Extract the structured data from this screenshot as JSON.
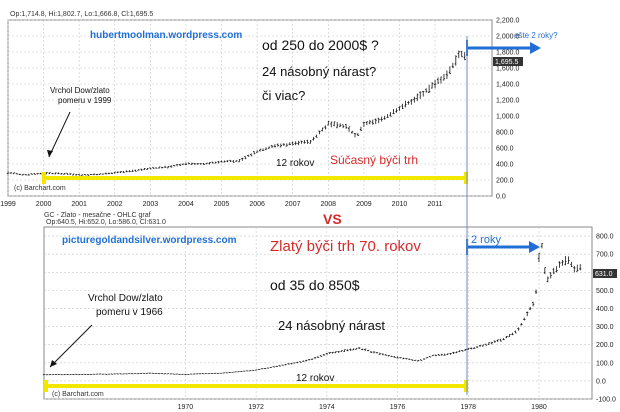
{
  "colors": {
    "annotation_blue": "#1f6fd6",
    "annotation_red": "#d62a2a",
    "highlight_yellow": "#f3e700",
    "bar_color": "#111111",
    "grid": "#c8c8c8",
    "price_box_bg": "#333333"
  },
  "vs_label": "VS",
  "chart_data": [
    {
      "type": "ohlc",
      "header": "Op:1,714.8, Hi:1,802.7, Lo:1,666.8, Cl:1,695.5",
      "watermark": "hubertmoolman.wordpress.com",
      "source": "(c) Barchart.com",
      "current_price_label": "1,695.5",
      "xlabel": "",
      "ylabel": "",
      "x_ticks": [
        "1999",
        "2000",
        "2001",
        "2002",
        "2003",
        "2004",
        "2005",
        "2006",
        "2007",
        "2008",
        "2009",
        "2010",
        "2011"
      ],
      "y_ticks": [
        "0.0",
        "200.0",
        "400.0",
        "600.0",
        "800.0",
        "1,000.0",
        "1,200.0",
        "1,400.0",
        "1,600.0",
        "1,800.0",
        "2,000.0",
        "2,200.0"
      ],
      "ylim": [
        0,
        2200
      ],
      "xlim": [
        1999,
        2012.6
      ],
      "grid": true,
      "annotations": {
        "range_text": "od 250 do 2000$ ?",
        "multiple_text": "24 násobný nárast?",
        "or_more_text": "či viac?",
        "peak_label_line1": "Vrchol Dow/zlato",
        "peak_label_line2": "pomeru v 1999",
        "duration_text": "12 rokov",
        "bull_market_text": "Súčasný býči trh",
        "future_text": "ešte 2 roky?"
      },
      "series": [
        {
          "values": [
            {
              "x": 1999.0,
              "y": 290
            },
            {
              "x": 1999.5,
              "y": 265
            },
            {
              "x": 2000.0,
              "y": 285
            },
            {
              "x": 2000.5,
              "y": 280
            },
            {
              "x": 2001.0,
              "y": 265
            },
            {
              "x": 2001.5,
              "y": 270
            },
            {
              "x": 2002.0,
              "y": 290
            },
            {
              "x": 2002.5,
              "y": 315
            },
            {
              "x": 2003.0,
              "y": 345
            },
            {
              "x": 2003.5,
              "y": 365
            },
            {
              "x": 2004.0,
              "y": 405
            },
            {
              "x": 2004.5,
              "y": 400
            },
            {
              "x": 2005.0,
              "y": 430
            },
            {
              "x": 2005.5,
              "y": 440
            },
            {
              "x": 2006.0,
              "y": 560
            },
            {
              "x": 2006.5,
              "y": 630
            },
            {
              "x": 2007.0,
              "y": 650
            },
            {
              "x": 2007.5,
              "y": 680
            },
            {
              "x": 2008.0,
              "y": 900
            },
            {
              "x": 2008.5,
              "y": 870
            },
            {
              "x": 2008.8,
              "y": 740
            },
            {
              "x": 2009.0,
              "y": 900
            },
            {
              "x": 2009.5,
              "y": 950
            },
            {
              "x": 2010.0,
              "y": 1100
            },
            {
              "x": 2010.5,
              "y": 1230
            },
            {
              "x": 2011.0,
              "y": 1400
            },
            {
              "x": 2011.4,
              "y": 1550
            },
            {
              "x": 2011.7,
              "y": 1800
            },
            {
              "x": 2011.9,
              "y": 1695
            }
          ]
        }
      ]
    },
    {
      "type": "ohlc",
      "title": "GC - Zlato - mesačne - OHLC graf",
      "header": "Op:640.5, Hi:652.0, Lo:586.0, Cl:631.0",
      "watermark": "picturegoldandsilver.wordpress.com",
      "source": "(c) Barchart.com",
      "current_price_label": "631.0",
      "xlabel": "",
      "ylabel": "",
      "x_ticks": [
        "1970",
        "1972",
        "1974",
        "1976",
        "1978",
        "1980"
      ],
      "y_ticks": [
        "-100.0",
        "0.0",
        "100.0",
        "200.0",
        "300.0",
        "400.0",
        "500.0",
        "600.0",
        "700.0",
        "800.0"
      ],
      "ylim": [
        -100,
        850
      ],
      "xlim": [
        1966,
        1981.5
      ],
      "grid": true,
      "annotations": {
        "bull_market_text": "Zlatý býči trh 70. rokov",
        "range_text": "od 35 do 850$",
        "multiple_text": "24 násobný nárast",
        "peak_label_line1": "Vrchol Dow/zlato",
        "peak_label_line2": "pomeru v 1966",
        "duration_text": "12 rokov",
        "future_text": "2 roky"
      },
      "series": [
        {
          "values": [
            {
              "x": 1966.0,
              "y": 35
            },
            {
              "x": 1967.0,
              "y": 35
            },
            {
              "x": 1968.0,
              "y": 38
            },
            {
              "x": 1969.0,
              "y": 42
            },
            {
              "x": 1970.0,
              "y": 36
            },
            {
              "x": 1971.0,
              "y": 42
            },
            {
              "x": 1972.0,
              "y": 60
            },
            {
              "x": 1973.0,
              "y": 95
            },
            {
              "x": 1973.6,
              "y": 120
            },
            {
              "x": 1974.0,
              "y": 150
            },
            {
              "x": 1974.9,
              "y": 180
            },
            {
              "x": 1975.5,
              "y": 150
            },
            {
              "x": 1976.0,
              "y": 130
            },
            {
              "x": 1976.6,
              "y": 110
            },
            {
              "x": 1977.0,
              "y": 140
            },
            {
              "x": 1977.5,
              "y": 150
            },
            {
              "x": 1978.0,
              "y": 175
            },
            {
              "x": 1978.5,
              "y": 200
            },
            {
              "x": 1979.0,
              "y": 230
            },
            {
              "x": 1979.4,
              "y": 280
            },
            {
              "x": 1979.7,
              "y": 380
            },
            {
              "x": 1979.9,
              "y": 450
            },
            {
              "x": 1980.05,
              "y": 800
            },
            {
              "x": 1980.2,
              "y": 550
            },
            {
              "x": 1980.4,
              "y": 600
            },
            {
              "x": 1980.6,
              "y": 640
            },
            {
              "x": 1980.8,
              "y": 670
            },
            {
              "x": 1981.0,
              "y": 620
            },
            {
              "x": 1981.2,
              "y": 631
            }
          ]
        }
      ]
    }
  ]
}
